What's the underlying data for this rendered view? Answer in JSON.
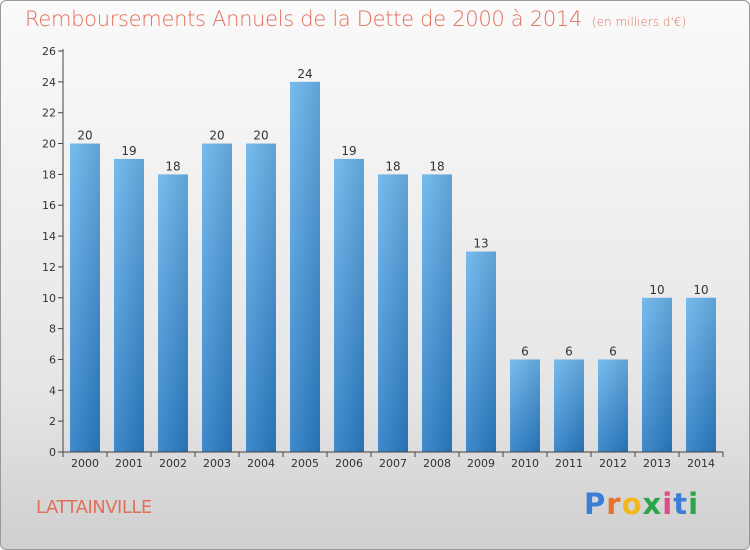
{
  "header": {
    "title": "Remboursements Annuels de la Dette de 2000 à 2014",
    "unit": "(en milliers d'€)"
  },
  "commune": "LATTAINVILLE",
  "logo": {
    "letters": [
      "P",
      "r",
      "o",
      "x",
      "i",
      "t",
      "i"
    ],
    "colors": [
      "#3a7fd5",
      "#e8732e",
      "#f2b81b",
      "#2aa54a",
      "#e04a8b",
      "#3a7fd5",
      "#2aa54a"
    ]
  },
  "colors": {
    "bar_top": "#6ab4ec",
    "bar_bottom": "#2a7dc6",
    "text_accent": "#e0705a"
  },
  "chart_data": {
    "type": "bar",
    "title": "Remboursements Annuels de la Dette de 2000 à 2014",
    "subtitle": "(en milliers d'€)",
    "xlabel": "",
    "ylabel": "",
    "categories": [
      "2000",
      "2001",
      "2002",
      "2003",
      "2004",
      "2005",
      "2006",
      "2007",
      "2008",
      "2009",
      "2010",
      "2011",
      "2012",
      "2013",
      "2014"
    ],
    "values": [
      20,
      19,
      18,
      20,
      20,
      24,
      19,
      18,
      18,
      13,
      6,
      6,
      6,
      10,
      10
    ],
    "ylim": [
      0,
      26
    ],
    "yticks": [
      0,
      2,
      4,
      6,
      8,
      10,
      12,
      14,
      16,
      18,
      20,
      22,
      24,
      26
    ],
    "grid": false,
    "data_labels": true
  }
}
